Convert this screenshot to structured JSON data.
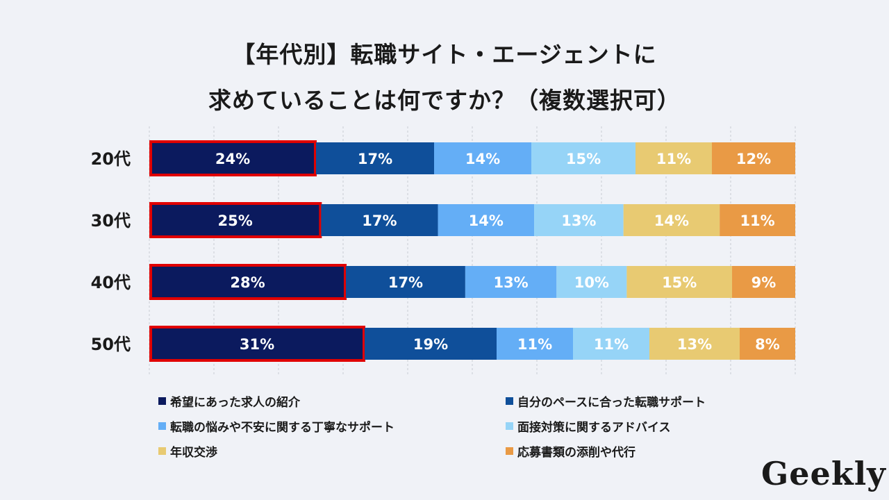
{
  "title_line1": "【年代別】転職サイト・エージェントに",
  "title_line2": "求めていることは何ですか？（複数選択可）",
  "logo": "Geekly",
  "chart_data": {
    "type": "bar",
    "orientation": "horizontal-stacked",
    "title": "【年代別】転職サイト・エージェントに 求めていることは何ですか？（複数選択可）",
    "categories": [
      "20代",
      "30代",
      "40代",
      "50代"
    ],
    "highlighted_series": "希望にあった求人の紹介",
    "highlight_color": "#e00000",
    "xlim": [
      0,
      100
    ],
    "grid": true,
    "legend_position": "bottom",
    "series": [
      {
        "name": "希望にあった求人の紹介",
        "color": "#0b1a5e",
        "values": [
          24,
          25,
          28,
          31
        ]
      },
      {
        "name": "自分のペースに合った転職サポート",
        "color": "#0f4f9a",
        "values": [
          17,
          17,
          17,
          19
        ]
      },
      {
        "name": "転職の悩みや不安に関する丁寧なサポート",
        "color": "#64aef6",
        "values": [
          14,
          14,
          13,
          11
        ]
      },
      {
        "name": "面接対策に関するアドバイス",
        "color": "#96d4f7",
        "values": [
          15,
          13,
          10,
          11
        ]
      },
      {
        "name": "年収交渉",
        "color": "#e8ca72",
        "values": [
          11,
          14,
          15,
          13
        ]
      },
      {
        "name": "応募書類の添削や代行",
        "color": "#e99a45",
        "values": [
          12,
          11,
          9,
          8
        ]
      }
    ]
  }
}
